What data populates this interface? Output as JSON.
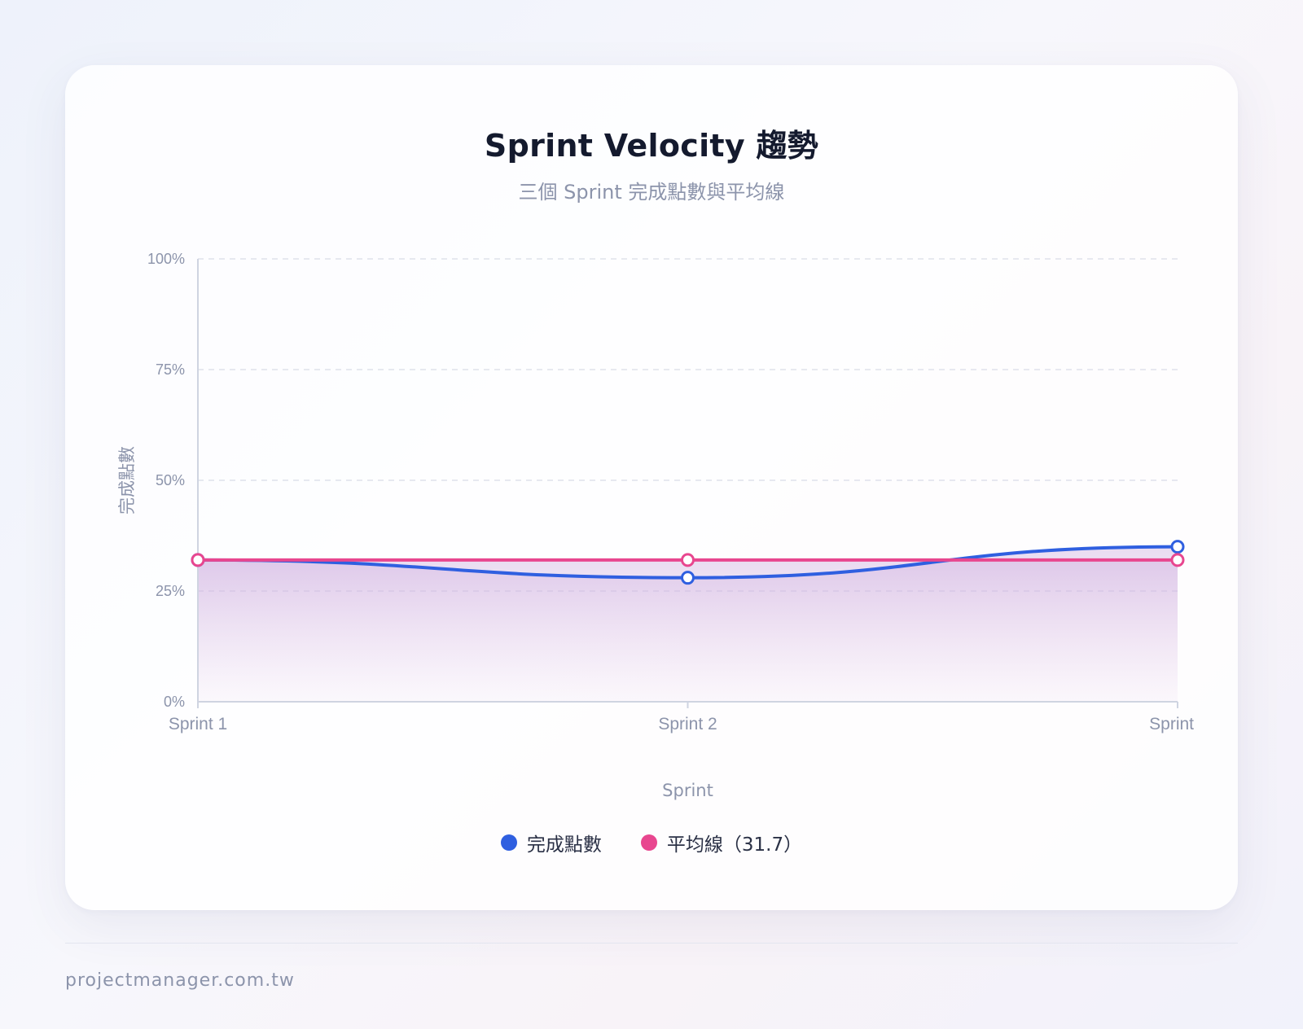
{
  "chart_data": {
    "type": "line",
    "title": "Sprint Velocity 趨勢",
    "subtitle": "三個 Sprint 完成點數與平均線",
    "xlabel": "Sprint",
    "ylabel": "完成點數",
    "categories": [
      "Sprint 1",
      "Sprint 2",
      "Sprint"
    ],
    "y_ticks": [
      "0%",
      "25%",
      "50%",
      "75%",
      "100%"
    ],
    "ylim": [
      0,
      100
    ],
    "grid": true,
    "legend_position": "bottom",
    "series": [
      {
        "name": "完成點數",
        "values": [
          32,
          28,
          35
        ],
        "color": "#2f5fe0"
      },
      {
        "name": "平均線（31.7）",
        "values": [
          32,
          32,
          32
        ],
        "color": "#e8468f"
      }
    ]
  },
  "footer": {
    "site": "projectmanager.com.tw"
  }
}
